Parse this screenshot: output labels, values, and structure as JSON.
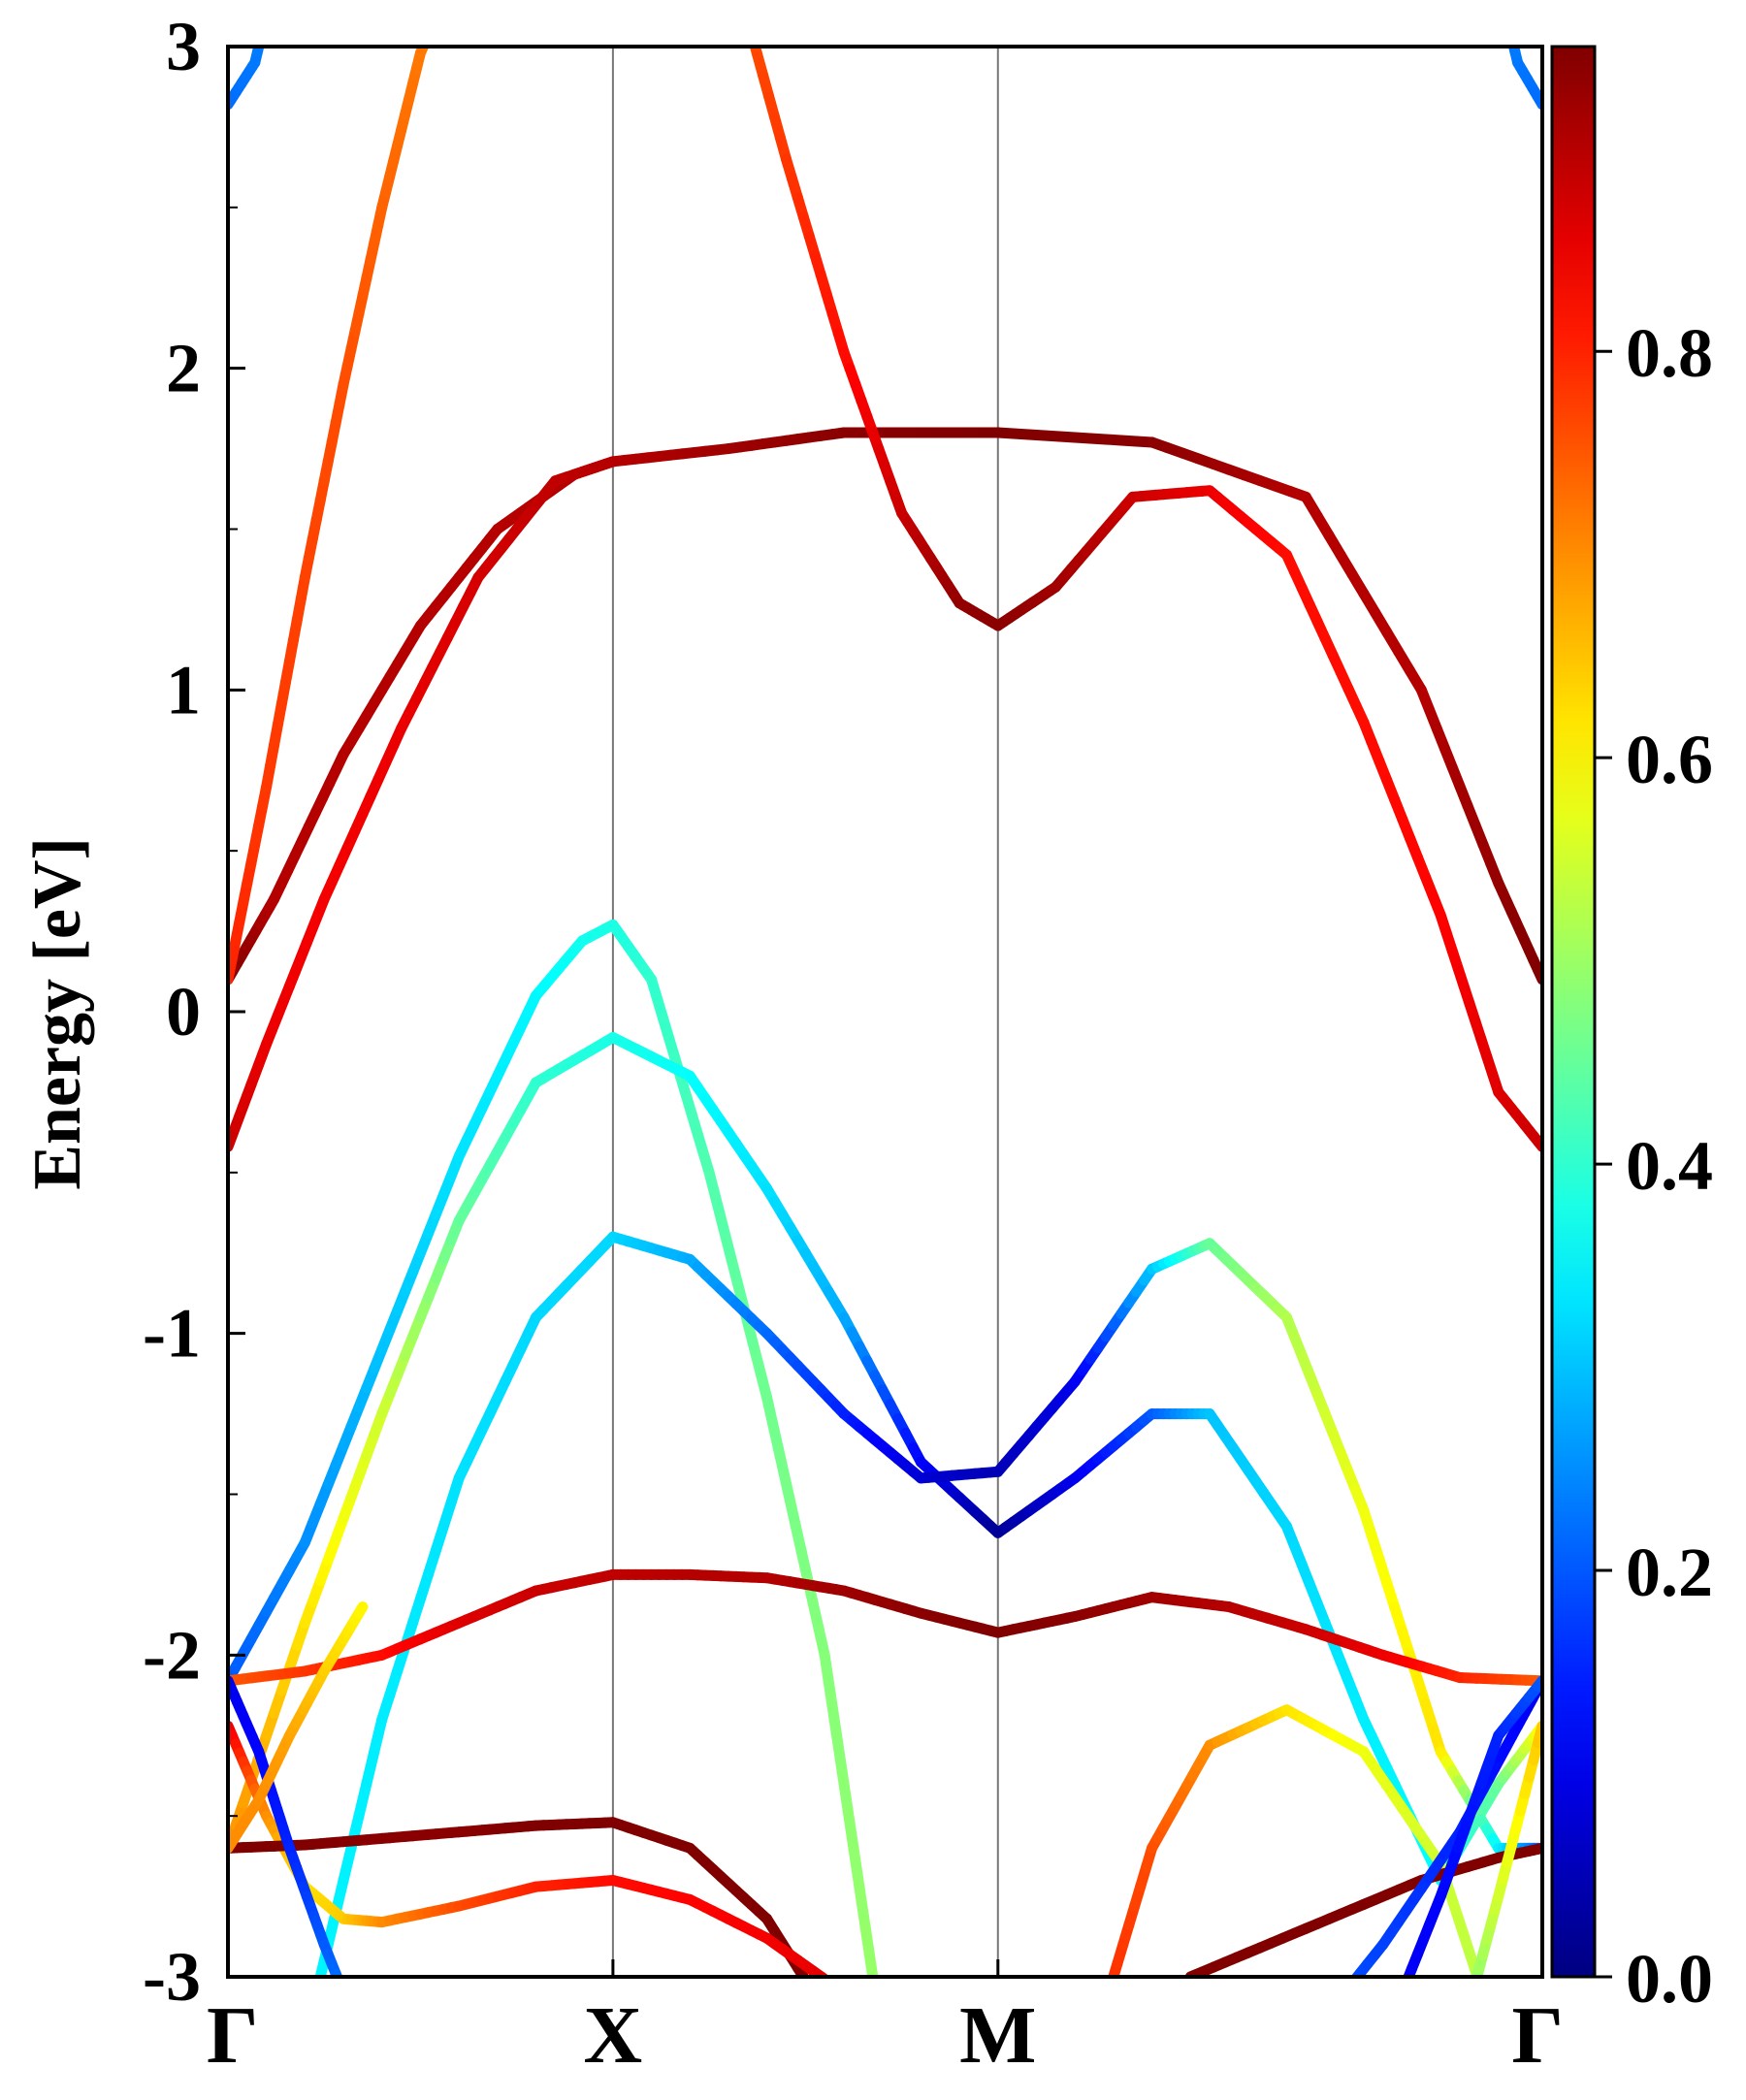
{
  "chart_data": {
    "type": "line",
    "title": "",
    "xlabel": "",
    "ylabel": "Energy [eV]",
    "ylim": [
      -3,
      3
    ],
    "y_ticks": [
      "3",
      "2",
      "1",
      "0",
      "-1",
      "-2",
      "-3"
    ],
    "k_points": [
      {
        "label": "Γ",
        "x": 0
      },
      {
        "label": "X",
        "x": 1
      },
      {
        "label": "M",
        "x": 2
      },
      {
        "label": "Γ",
        "x": 3.414
      }
    ],
    "colorbar": {
      "min": 0.0,
      "max": 0.95,
      "colormap": "jet",
      "ticks": [
        "0.0",
        "0.2",
        "0.4",
        "0.6",
        "0.8"
      ],
      "tick_values": [
        0.0,
        0.2,
        0.4,
        0.6,
        0.8
      ]
    },
    "grid": false,
    "series": [
      {
        "x": [
          0,
          0.12,
          0.3,
          0.5,
          0.7,
          0.9,
          1,
          1.3,
          1.6,
          2,
          2.4,
          2.8,
          3.1,
          3.3,
          3.414
        ],
        "y": [
          0.1,
          0.35,
          0.8,
          1.2,
          1.5,
          1.67,
          1.71,
          1.75,
          1.8,
          1.8,
          1.77,
          1.6,
          1.0,
          0.4,
          0.1
        ],
        "c": [
          0.95,
          0.9,
          0.9,
          0.9,
          0.9,
          0.9,
          0.9,
          0.92,
          0.94,
          0.95,
          0.94,
          0.9,
          0.9,
          0.93,
          0.95
        ]
      },
      {
        "x": [
          0,
          0.1,
          0.2,
          0.3,
          0.4,
          0.5,
          0.62
        ],
        "y": [
          0.1,
          0.7,
          1.35,
          1.95,
          2.5,
          2.98,
          3.3
        ],
        "c": [
          0.8,
          0.78,
          0.77,
          0.76,
          0.74,
          0.72,
          0.7
        ]
      },
      {
        "x": [
          1.3,
          1.45,
          1.6,
          1.75,
          1.9,
          2,
          2.15,
          2.35,
          2.55,
          2.75,
          2.95,
          3.15,
          3.3,
          3.414
        ],
        "y": [
          3.3,
          2.65,
          2.05,
          1.55,
          1.27,
          1.2,
          1.32,
          1.6,
          1.62,
          1.42,
          0.9,
          0.3,
          -0.25,
          -0.42
        ],
        "c": [
          0.75,
          0.78,
          0.82,
          0.88,
          0.93,
          0.94,
          0.92,
          0.88,
          0.85,
          0.82,
          0.82,
          0.83,
          0.86,
          0.88
        ]
      },
      {
        "x": [
          0,
          0.1,
          0.25,
          0.45,
          0.65,
          0.85,
          1
        ],
        "y": [
          -0.42,
          -0.1,
          0.35,
          0.88,
          1.35,
          1.65,
          1.71
        ],
        "c": [
          0.88,
          0.85,
          0.84,
          0.85,
          0.87,
          0.89,
          0.9
        ]
      },
      {
        "x": [
          0,
          0.2,
          0.4,
          0.6,
          0.8,
          0.92,
          1,
          1.1,
          1.25,
          1.4,
          1.55,
          1.7
        ],
        "y": [
          -2.08,
          -1.65,
          -1.05,
          -0.45,
          0.05,
          0.22,
          0.27,
          0.1,
          -0.5,
          -1.2,
          -2.0,
          -3.2
        ],
        "c": [
          0.2,
          0.25,
          0.3,
          0.33,
          0.35,
          0.37,
          0.38,
          0.4,
          0.43,
          0.46,
          0.48,
          0.5
        ]
      },
      {
        "x": [
          0,
          0.2,
          0.4,
          0.6,
          0.8,
          1,
          1.2,
          1.4,
          1.6,
          1.8,
          2,
          2.2,
          2.4,
          2.55,
          2.75,
          2.95,
          3.15,
          3.3,
          3.414
        ],
        "y": [
          -2.6,
          -1.9,
          -1.25,
          -0.65,
          -0.22,
          -0.08,
          -0.2,
          -0.55,
          -0.95,
          -1.4,
          -1.62,
          -1.45,
          -1.25,
          -1.25,
          -1.6,
          -2.2,
          -2.7,
          -2.4,
          -2.22
        ],
        "c": [
          0.7,
          0.62,
          0.55,
          0.45,
          0.4,
          0.38,
          0.36,
          0.33,
          0.28,
          0.12,
          0.02,
          0.1,
          0.2,
          0.3,
          0.32,
          0.34,
          0.36,
          0.45,
          0.6
        ]
      },
      {
        "x": [
          0.2,
          0.4,
          0.6,
          0.8,
          1,
          1.2,
          1.4,
          1.6,
          1.8,
          2,
          2.2,
          2.4,
          2.55,
          2.75,
          2.95,
          3.15,
          3.3,
          3.414
        ],
        "y": [
          -3.2,
          -2.2,
          -1.45,
          -0.95,
          -0.7,
          -0.77,
          -1.0,
          -1.25,
          -1.45,
          -1.43,
          -1.15,
          -0.8,
          -0.72,
          -0.95,
          -1.55,
          -2.3,
          -2.6,
          -2.6
        ],
        "c": [
          0.35,
          0.34,
          0.33,
          0.32,
          0.32,
          0.28,
          0.22,
          0.15,
          0.08,
          0.05,
          0.1,
          0.3,
          0.45,
          0.52,
          0.58,
          0.62,
          0.35,
          0.2
        ]
      },
      {
        "x": [
          0,
          0.2,
          0.4,
          0.6,
          0.8,
          1,
          1.2,
          1.4,
          1.6,
          1.8,
          2,
          2.2,
          2.4,
          2.6,
          2.8,
          3.0,
          3.2,
          3.414
        ],
        "y": [
          -2.08,
          -2.05,
          -2.0,
          -1.9,
          -1.8,
          -1.75,
          -1.75,
          -1.76,
          -1.8,
          -1.87,
          -1.93,
          -1.88,
          -1.82,
          -1.85,
          -1.92,
          -2.0,
          -2.07,
          -2.08
        ],
        "c": [
          0.75,
          0.78,
          0.82,
          0.86,
          0.88,
          0.89,
          0.9,
          0.9,
          0.92,
          0.94,
          0.95,
          0.94,
          0.92,
          0.9,
          0.88,
          0.85,
          0.8,
          0.75
        ]
      },
      {
        "x": [
          0,
          0.1,
          0.2,
          0.3,
          0.4,
          0.6,
          0.8,
          1
        ],
        "y": [
          -2.22,
          -2.5,
          -2.72,
          -2.82,
          -2.83,
          -2.78,
          -2.72,
          -2.7
        ],
        "c": [
          0.85,
          0.7,
          0.62,
          0.64,
          0.7,
          0.76,
          0.8,
          0.82
        ]
      },
      {
        "x": [
          0,
          0.2,
          0.4,
          0.6,
          0.8,
          1,
          1.2,
          1.4,
          1.6
        ],
        "y": [
          -2.6,
          -2.59,
          -2.57,
          -2.55,
          -2.53,
          -2.52,
          -2.6,
          -2.82,
          -3.2
        ],
        "c": [
          0.95,
          0.95,
          0.94,
          0.94,
          0.95,
          0.95,
          0.95,
          0.95,
          0.95
        ]
      },
      {
        "x": [
          1,
          1.2,
          1.4,
          1.6,
          1.72
        ],
        "y": [
          -2.7,
          -2.76,
          -2.88,
          -3.05,
          -3.2
        ],
        "c": [
          0.82,
          0.83,
          0.84,
          0.86,
          0.87
        ]
      },
      {
        "x": [
          0,
          0.08,
          0.16,
          0.25,
          0.35
        ],
        "y": [
          -2.08,
          -2.3,
          -2.6,
          -2.9,
          -3.2
        ],
        "c": [
          0.1,
          0.12,
          0.15,
          0.2,
          0.25
        ]
      },
      {
        "x": [
          0,
          0.08,
          0.16,
          0.25,
          0.35
        ],
        "y": [
          -2.6,
          -2.45,
          -2.25,
          -2.05,
          -1.85
        ],
        "c": [
          0.7,
          0.7,
          0.68,
          0.64,
          0.6
        ]
      },
      {
        "x": [
          2.25,
          2.4,
          2.55,
          2.75,
          2.95,
          3.15,
          3.3
        ],
        "y": [
          -3.2,
          -2.6,
          -2.28,
          -2.17,
          -2.3,
          -2.65,
          -3.2
        ],
        "c": [
          0.8,
          0.76,
          0.7,
          0.62,
          0.58,
          0.55,
          0.52
        ]
      },
      {
        "x": [
          2.5,
          2.8,
          3.1,
          3.3,
          3.414
        ],
        "y": [
          -3.0,
          -2.85,
          -2.7,
          -2.63,
          -2.6
        ],
        "c": [
          0.95,
          0.95,
          0.95,
          0.95,
          0.95
        ]
      },
      {
        "x": [
          2.8,
          3.0,
          3.2,
          3.35,
          3.414
        ],
        "y": [
          -3.2,
          -2.9,
          -2.55,
          -2.22,
          -2.08
        ],
        "c": [
          0.2,
          0.18,
          0.15,
          0.12,
          0.1
        ]
      },
      {
        "x": [
          3.0,
          3.15,
          3.3,
          3.414
        ],
        "y": [
          -3.2,
          -2.75,
          -2.25,
          -2.08
        ],
        "c": [
          0.1,
          0.12,
          0.15,
          0.2
        ]
      },
      {
        "x": [
          3.2,
          3.3,
          3.414
        ],
        "y": [
          -3.2,
          -2.75,
          -2.22
        ],
        "c": [
          0.45,
          0.55,
          0.65
        ]
      },
      {
        "x": [
          3.28,
          3.35,
          3.414
        ],
        "y": [
          3.3,
          2.95,
          2.82
        ],
        "c": [
          0.25,
          0.23,
          0.22
        ]
      },
      {
        "x": [
          0,
          0.07,
          0.14
        ],
        "y": [
          2.82,
          2.95,
          3.3
        ],
        "c": [
          0.22,
          0.23,
          0.25
        ]
      }
    ]
  }
}
